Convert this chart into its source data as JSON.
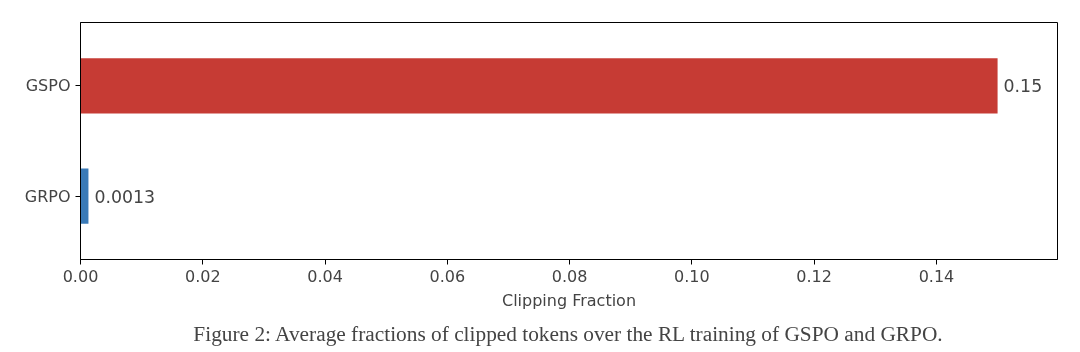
{
  "chart_data": {
    "type": "bar",
    "orientation": "horizontal",
    "categories": [
      "GSPO",
      "GRPO"
    ],
    "values": [
      0.15,
      0.0013
    ],
    "colors": [
      "#c63b34",
      "#3a7ab7"
    ],
    "data_labels": true,
    "xlabel": "Clipping Fraction",
    "xlim": [
      0,
      0.1598
    ],
    "xticks": [
      {
        "value": 0,
        "label": "0.00"
      },
      {
        "value": 0.02,
        "label": "0.02"
      },
      {
        "value": 0.04,
        "label": "0.04"
      },
      {
        "value": 0.06,
        "label": "0.06"
      },
      {
        "value": 0.08,
        "label": "0.08"
      },
      {
        "value": 0.1,
        "label": "0.10"
      },
      {
        "value": 0.12,
        "label": "0.12"
      },
      {
        "value": 0.14,
        "label": "0.14"
      }
    ],
    "grid": false,
    "annotations": [
      "Figure 2: Average fractions of clipped tokens over the RL training of GSPO and GRPO."
    ]
  }
}
